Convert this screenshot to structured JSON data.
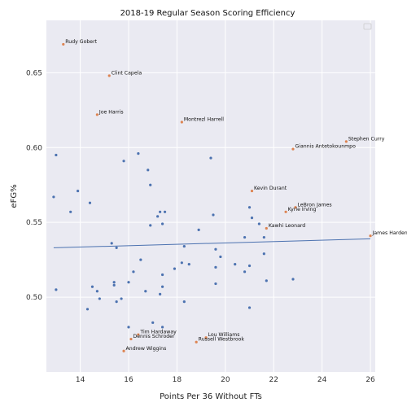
{
  "chart_data": {
    "type": "scatter",
    "title": "2018-19 Regular Season Scoring Efficiency",
    "xlabel": "Points Per 36 Without FTs",
    "ylabel": "eFG%",
    "xlim": [
      12.6,
      26.2
    ],
    "ylim": [
      0.45,
      0.685
    ],
    "xticks": [
      14,
      16,
      18,
      20,
      22,
      24,
      26
    ],
    "yticks": [
      0.5,
      0.55,
      0.6,
      0.65
    ],
    "ytick_labels": [
      "0.50",
      "0.55",
      "0.60",
      "0.65"
    ],
    "grid": true,
    "background": "#eaeaf2",
    "legend": {
      "placement": "upper-right",
      "entries": []
    },
    "colors": {
      "others": "#4c72b0",
      "labeled": "#dd8452",
      "fit_line": "#4c72b0"
    },
    "fit_line": {
      "x": [
        12.9,
        26.0
      ],
      "y": [
        0.533,
        0.539
      ]
    },
    "labeled_points": [
      {
        "label": "Rudy Gobert",
        "x": 13.3,
        "y": 0.669
      },
      {
        "label": "Clint Capela",
        "x": 15.2,
        "y": 0.648
      },
      {
        "label": "Joe Harris",
        "x": 14.7,
        "y": 0.622
      },
      {
        "label": "Montrezl Harrell",
        "x": 18.2,
        "y": 0.617
      },
      {
        "label": "Stephen Curry",
        "x": 25.0,
        "y": 0.604
      },
      {
        "label": "Giannis Antetokounmpo",
        "x": 22.8,
        "y": 0.599
      },
      {
        "label": "Kevin Durant",
        "x": 21.1,
        "y": 0.571
      },
      {
        "label": "LeBron James",
        "x": 22.9,
        "y": 0.56
      },
      {
        "label": "Kyrie Irving",
        "x": 22.5,
        "y": 0.557
      },
      {
        "label": "Kawhi Leonard",
        "x": 21.7,
        "y": 0.546
      },
      {
        "label": "James Harden",
        "x": 26.0,
        "y": 0.541
      },
      {
        "label": "Tim Hardaway",
        "x": 16.4,
        "y": 0.475
      },
      {
        "label": "Dennis Schroder",
        "x": 16.1,
        "y": 0.472
      },
      {
        "label": "Lou Williams",
        "x": 19.2,
        "y": 0.473
      },
      {
        "label": "Russell Westbrook",
        "x": 18.8,
        "y": 0.47
      },
      {
        "label": "Andrew Wiggins",
        "x": 15.8,
        "y": 0.464
      }
    ],
    "other_points": [
      {
        "x": 12.9,
        "y": 0.567
      },
      {
        "x": 13.0,
        "y": 0.595
      },
      {
        "x": 13.0,
        "y": 0.505
      },
      {
        "x": 13.6,
        "y": 0.557
      },
      {
        "x": 13.9,
        "y": 0.571
      },
      {
        "x": 14.3,
        "y": 0.492
      },
      {
        "x": 14.4,
        "y": 0.563
      },
      {
        "x": 14.5,
        "y": 0.507
      },
      {
        "x": 14.7,
        "y": 0.504
      },
      {
        "x": 14.8,
        "y": 0.499
      },
      {
        "x": 15.3,
        "y": 0.536
      },
      {
        "x": 15.4,
        "y": 0.51
      },
      {
        "x": 15.4,
        "y": 0.508
      },
      {
        "x": 15.5,
        "y": 0.533
      },
      {
        "x": 15.5,
        "y": 0.497
      },
      {
        "x": 15.7,
        "y": 0.499
      },
      {
        "x": 15.8,
        "y": 0.591
      },
      {
        "x": 16.0,
        "y": 0.51
      },
      {
        "x": 16.0,
        "y": 0.48
      },
      {
        "x": 16.2,
        "y": 0.517
      },
      {
        "x": 16.4,
        "y": 0.596
      },
      {
        "x": 16.5,
        "y": 0.525
      },
      {
        "x": 16.7,
        "y": 0.504
      },
      {
        "x": 16.8,
        "y": 0.585
      },
      {
        "x": 16.9,
        "y": 0.575
      },
      {
        "x": 16.9,
        "y": 0.548
      },
      {
        "x": 17.0,
        "y": 0.483
      },
      {
        "x": 17.2,
        "y": 0.554
      },
      {
        "x": 17.3,
        "y": 0.557
      },
      {
        "x": 17.4,
        "y": 0.549
      },
      {
        "x": 17.4,
        "y": 0.515
      },
      {
        "x": 17.4,
        "y": 0.507
      },
      {
        "x": 17.4,
        "y": 0.48
      },
      {
        "x": 17.5,
        "y": 0.557
      },
      {
        "x": 17.3,
        "y": 0.502
      },
      {
        "x": 17.9,
        "y": 0.519
      },
      {
        "x": 18.2,
        "y": 0.523
      },
      {
        "x": 18.3,
        "y": 0.534
      },
      {
        "x": 18.3,
        "y": 0.497
      },
      {
        "x": 18.5,
        "y": 0.522
      },
      {
        "x": 18.9,
        "y": 0.545
      },
      {
        "x": 19.4,
        "y": 0.593
      },
      {
        "x": 19.5,
        "y": 0.555
      },
      {
        "x": 19.6,
        "y": 0.532
      },
      {
        "x": 19.6,
        "y": 0.52
      },
      {
        "x": 19.6,
        "y": 0.509
      },
      {
        "x": 19.8,
        "y": 0.527
      },
      {
        "x": 20.4,
        "y": 0.522
      },
      {
        "x": 20.8,
        "y": 0.54
      },
      {
        "x": 20.8,
        "y": 0.517
      },
      {
        "x": 21.0,
        "y": 0.56
      },
      {
        "x": 21.1,
        "y": 0.553
      },
      {
        "x": 21.0,
        "y": 0.521
      },
      {
        "x": 21.0,
        "y": 0.493
      },
      {
        "x": 21.4,
        "y": 0.549
      },
      {
        "x": 21.6,
        "y": 0.54
      },
      {
        "x": 21.6,
        "y": 0.529
      },
      {
        "x": 21.7,
        "y": 0.511
      },
      {
        "x": 22.8,
        "y": 0.512
      }
    ]
  }
}
